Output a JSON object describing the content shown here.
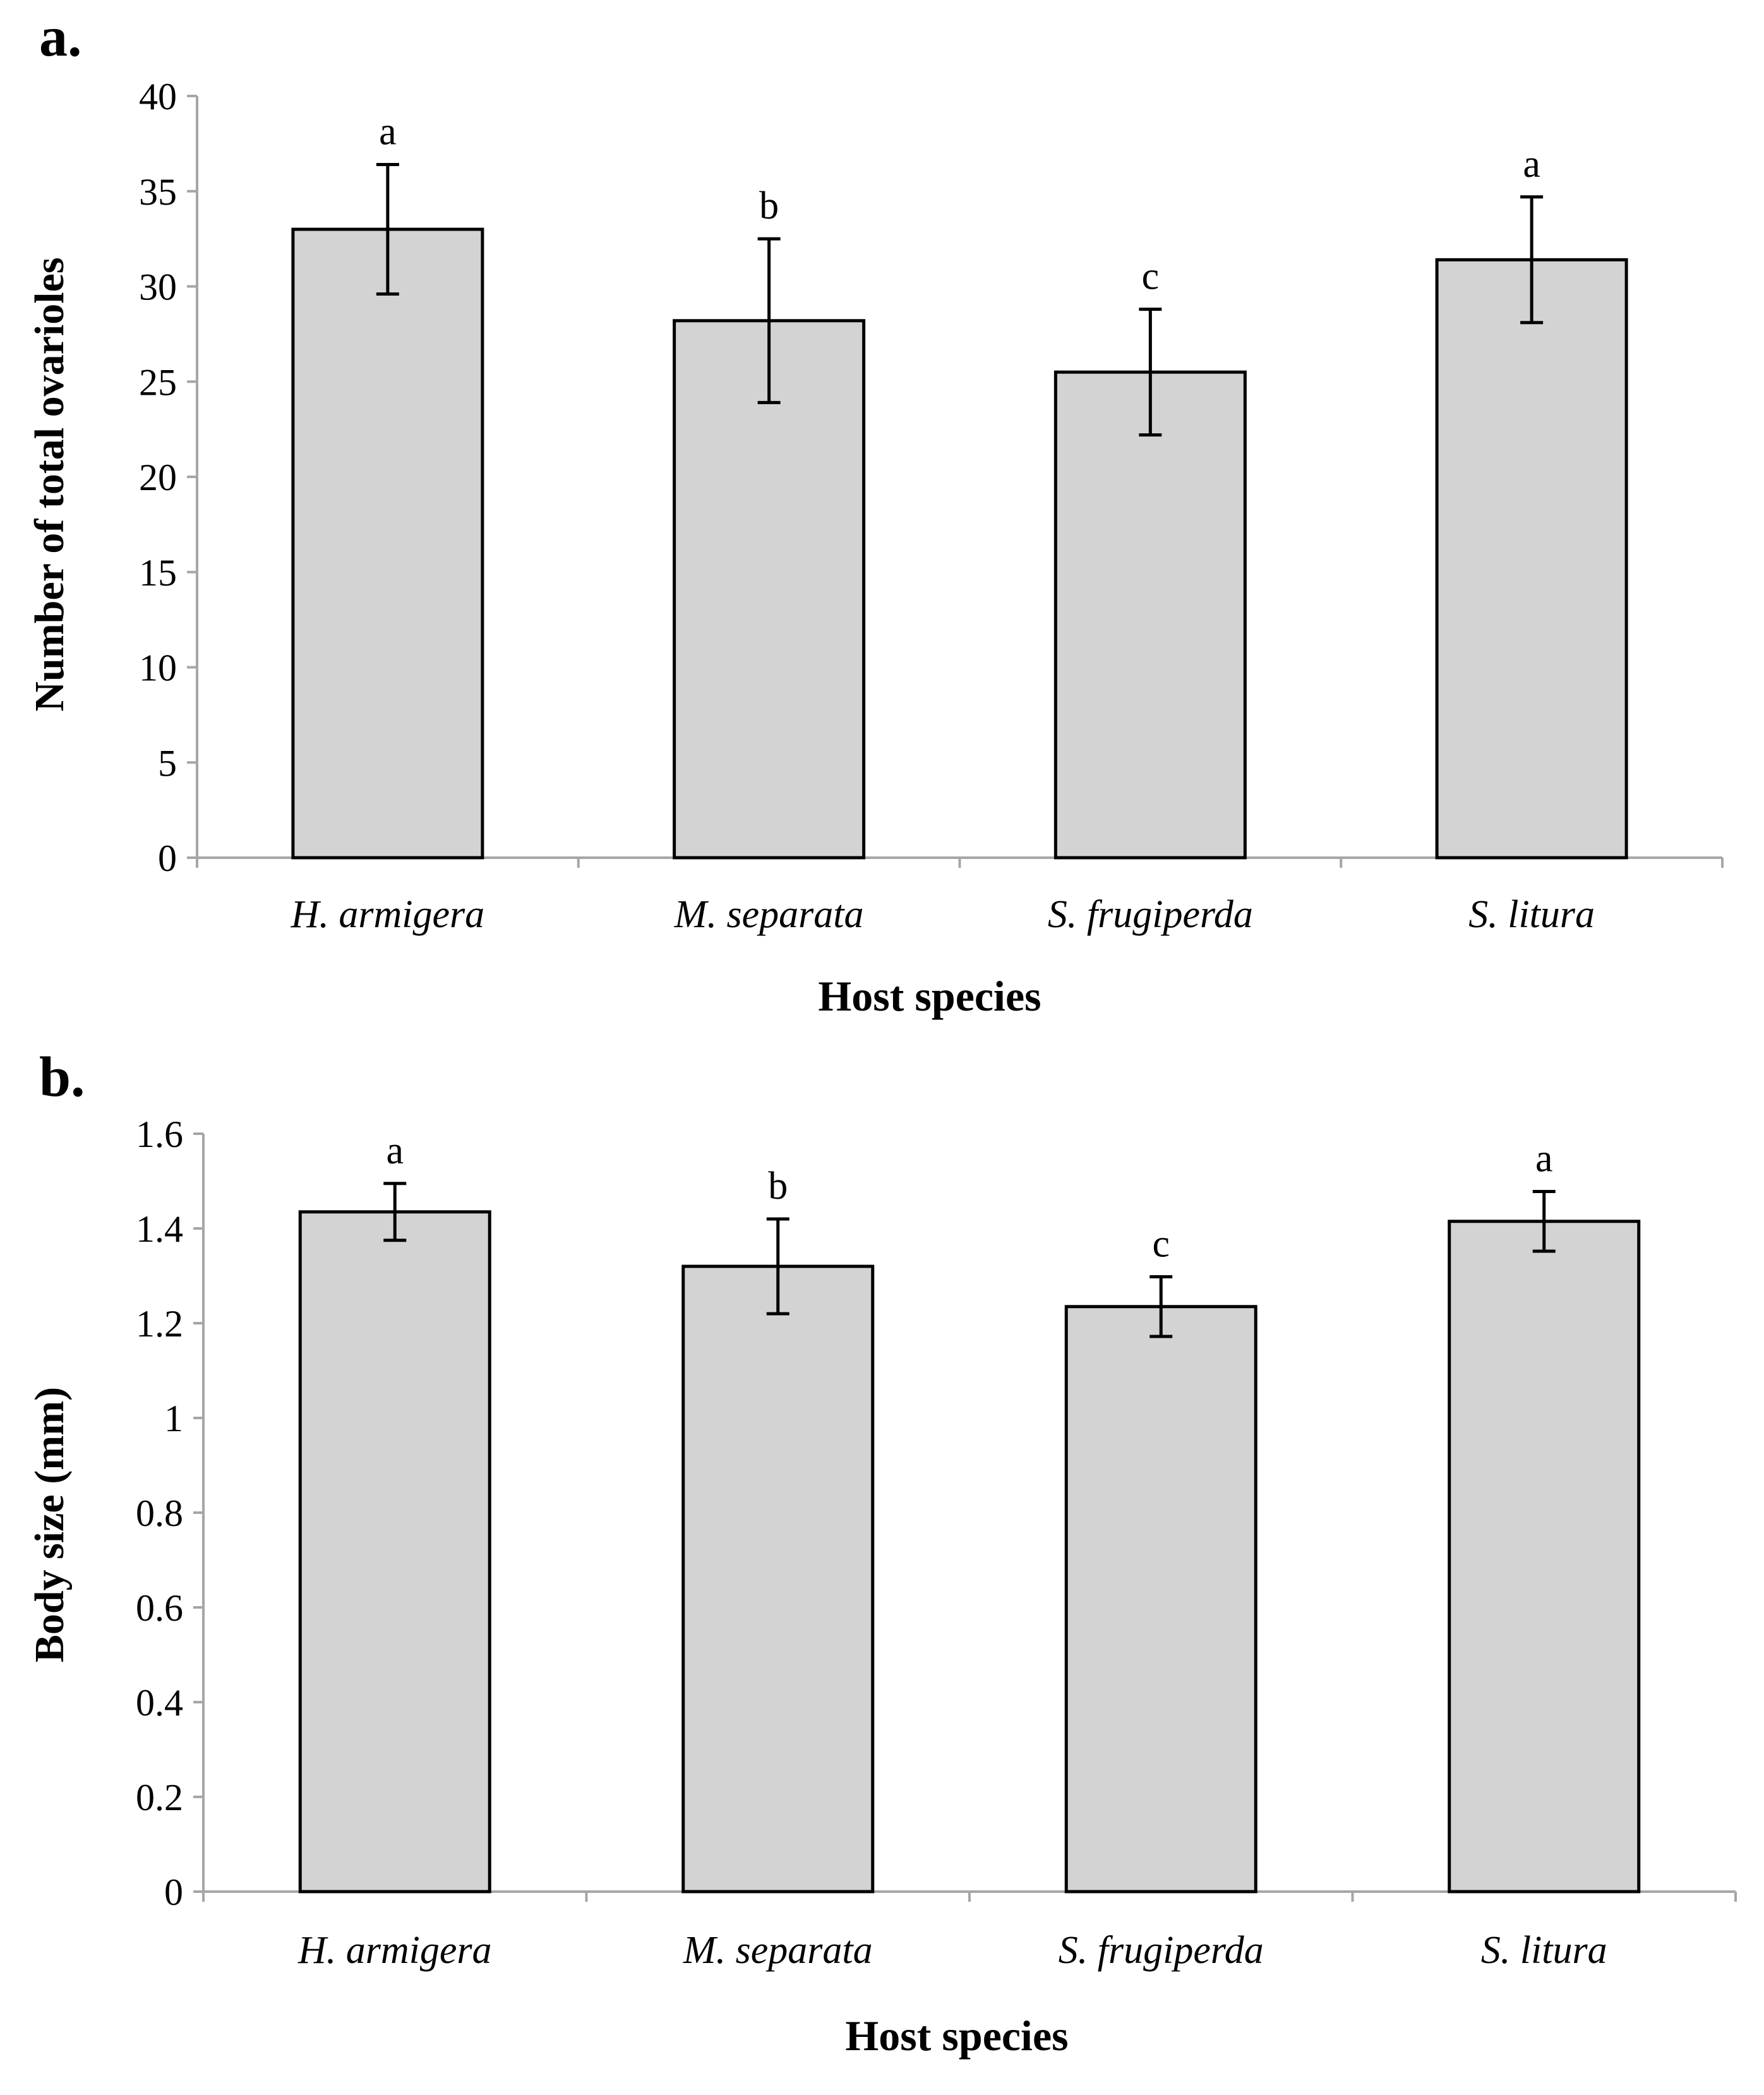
{
  "figure": {
    "colors": {
      "bar_fill": "#d3d3d3",
      "bar_stroke": "#000000",
      "axis": "#a6a6a6",
      "text": "#000000"
    }
  },
  "chart_data": [
    {
      "type": "bar",
      "panel_label": "a.",
      "title": "",
      "xlabel": "Host species",
      "ylabel": "Number of total ovarioles",
      "categories": [
        "H. armigera",
        "M. separata",
        "S. frugiperda",
        "S. litura"
      ],
      "values": [
        33.0,
        28.2,
        25.5,
        31.4
      ],
      "error": [
        3.4,
        4.3,
        3.3,
        3.3
      ],
      "significance_letters": [
        "a",
        "b",
        "c",
        "a"
      ],
      "ylim": [
        0,
        40
      ],
      "yticks": [
        0,
        5,
        10,
        15,
        20,
        25,
        30,
        35,
        40
      ],
      "ytick_labels": [
        "0",
        "5",
        "10",
        "15",
        "20",
        "25",
        "30",
        "35",
        "40"
      ],
      "grid": false,
      "legend": "none"
    },
    {
      "type": "bar",
      "panel_label": "b.",
      "title": "",
      "xlabel": "Host species",
      "ylabel": "Body size (mm)",
      "categories": [
        "H. armigera",
        "M. separata",
        "S. frugiperda",
        "S. litura"
      ],
      "values": [
        1.435,
        1.32,
        1.235,
        1.415
      ],
      "error": [
        0.06,
        0.1,
        0.063,
        0.063
      ],
      "significance_letters": [
        "a",
        "b",
        "c",
        "a"
      ],
      "ylim": [
        0,
        1.6
      ],
      "yticks": [
        0,
        0.2,
        0.4,
        0.6,
        0.8,
        1,
        1.2,
        1.4,
        1.6
      ],
      "ytick_labels": [
        "0",
        "0.2",
        "0.4",
        "0.6",
        "0.8",
        "1",
        "1.2",
        "1.4",
        "1.6"
      ],
      "grid": false,
      "legend": "none"
    }
  ]
}
